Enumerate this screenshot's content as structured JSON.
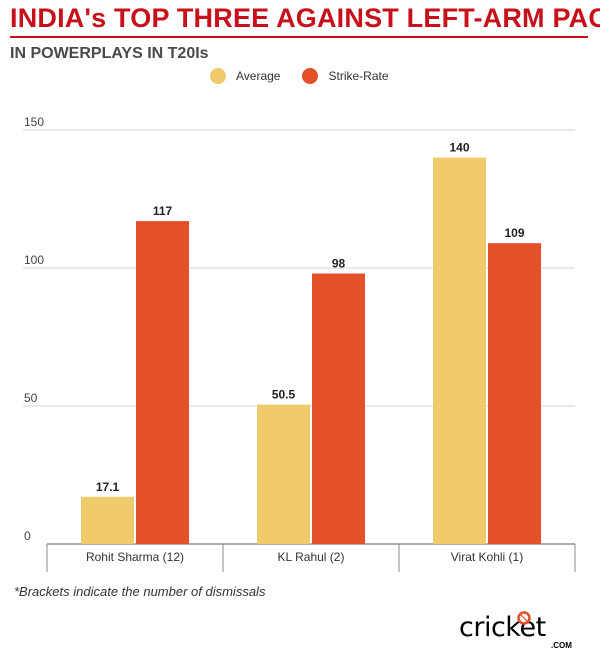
{
  "header": {
    "title": "INDIA's TOP THREE AGAINST LEFT-ARM PACE",
    "subtitle": "IN POWERPLAYS IN T20Is"
  },
  "colors": {
    "accent": "#c8101a",
    "average": "#efcb6b",
    "strike_rate": "#e4502a"
  },
  "chart_data": {
    "type": "bar",
    "categories": [
      "Rohit Sharma (12)",
      "KL Rahul (2)",
      "Virat Kohli (1)"
    ],
    "series": [
      {
        "name": "Average",
        "values": [
          17.1,
          50.5,
          140
        ],
        "labels": [
          "17.1",
          "50.5",
          "140"
        ],
        "color": "#efcb6b"
      },
      {
        "name": "Strike-Rate",
        "values": [
          117,
          98,
          109
        ],
        "labels": [
          "117",
          "98",
          "109"
        ],
        "color": "#e4502a"
      }
    ],
    "yticks": [
      "0",
      "50",
      "100",
      "150"
    ],
    "ylim": [
      0,
      150
    ],
    "grid": true,
    "legend": "top-center"
  },
  "footnote": "*Brackets indicate the number of dismissals",
  "brand": {
    "name": "cricket",
    "suffix": ".COM",
    "icon": "cricket-ball-logo"
  }
}
